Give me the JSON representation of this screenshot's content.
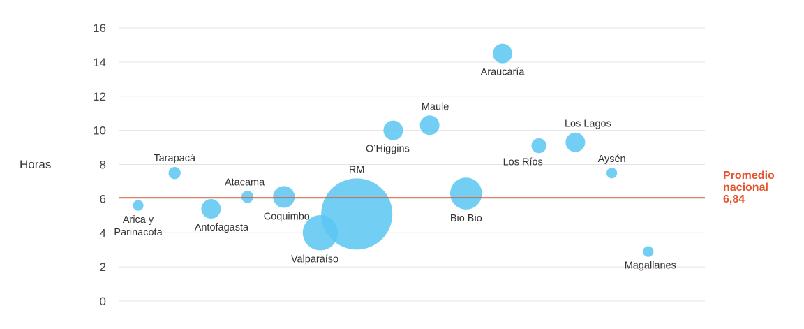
{
  "chart_data": {
    "type": "bubble",
    "ylabel": "Horas",
    "ylim": [
      0,
      16
    ],
    "yticks": [
      0,
      2,
      4,
      6,
      8,
      10,
      12,
      14,
      16
    ],
    "grid": true,
    "colors": {
      "bubble": "#5bc5f2",
      "average_line": "#e5532c"
    },
    "average": {
      "value": 6.84,
      "label": [
        "Promedio",
        "nacional",
        "6,84"
      ]
    },
    "points": [
      {
        "name": "Arica y Parinacota",
        "label": [
          "Arica y",
          "Parinacota"
        ],
        "x": 1,
        "y": 5.6,
        "size": 1
      },
      {
        "name": "Tarapacá",
        "label": [
          "Tarapacá"
        ],
        "x": 2,
        "y": 7.5,
        "size": 1.3
      },
      {
        "name": "Antofagasta",
        "label": [
          "Antofagasta"
        ],
        "x": 3,
        "y": 5.4,
        "size": 3.4
      },
      {
        "name": "Atacama",
        "label": [
          "Atacama"
        ],
        "x": 4,
        "y": 6.1,
        "size": 1.3
      },
      {
        "name": "Coquimbo",
        "label": [
          "Coquimbo"
        ],
        "x": 5,
        "y": 6.1,
        "size": 4.2
      },
      {
        "name": "Valparaíso",
        "label": [
          "Valparaíso"
        ],
        "x": 6,
        "y": 4.0,
        "size": 11
      },
      {
        "name": "RM",
        "label": [
          "RM"
        ],
        "x": 7,
        "y": 5.1,
        "size": 45
      },
      {
        "name": "O'Higgins",
        "label": [
          "O’Higgins"
        ],
        "x": 8,
        "y": 10.0,
        "size": 3.4
      },
      {
        "name": "Maule",
        "label": [
          "Maule"
        ],
        "x": 9,
        "y": 10.3,
        "size": 3.4
      },
      {
        "name": "Bio Bio",
        "label": [
          "Bio Bio"
        ],
        "x": 10,
        "y": 6.3,
        "size": 9
      },
      {
        "name": "Araucaría",
        "label": [
          "Araucaría"
        ],
        "x": 11,
        "y": 14.5,
        "size": 3.4
      },
      {
        "name": "Los Ríos",
        "label": [
          "Los Ríos"
        ],
        "x": 12,
        "y": 9.1,
        "size": 2
      },
      {
        "name": "Los Lagos",
        "label": [
          "Los Lagos"
        ],
        "x": 13,
        "y": 9.3,
        "size": 3.4
      },
      {
        "name": "Aysén",
        "label": [
          "Aysén"
        ],
        "x": 14,
        "y": 7.5,
        "size": 1
      },
      {
        "name": "Magallanes",
        "label": [
          "Magallanes"
        ],
        "x": 15,
        "y": 2.9,
        "size": 1
      }
    ]
  }
}
